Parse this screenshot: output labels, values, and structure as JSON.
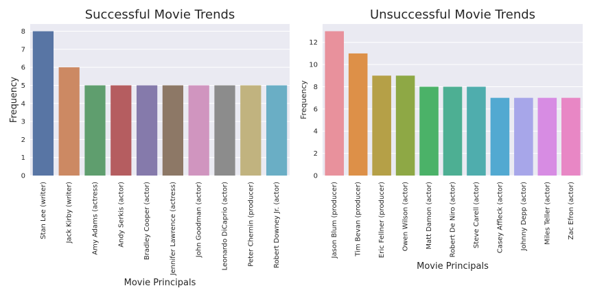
{
  "chart_data": [
    {
      "type": "bar",
      "title": "Successful Movie Trends",
      "xlabel": "Movie Principals",
      "ylabel": "Frequency",
      "ylim": [
        0,
        8.4
      ],
      "yticks": [
        0,
        1,
        2,
        3,
        4,
        5,
        6,
        7,
        8
      ],
      "grid": true,
      "categories": [
        "Stan Lee (writer)",
        "Jack Kirby (writer)",
        "Amy Adams (actress)",
        "Andy Serkis (actor)",
        "Bradley Cooper (actor)",
        "Jennifer Lawrence (actress)",
        "John Goodman (actor)",
        "Leonardo DiCaprio (actor)",
        "Peter Chernin (producer)",
        "Robert Downey Jr. (actor)"
      ],
      "values": [
        8,
        6,
        5,
        5,
        5,
        5,
        5,
        5,
        5,
        5
      ],
      "colors": [
        "#5875a4",
        "#cc8963",
        "#5f9e6e",
        "#b55d60",
        "#857aab",
        "#8d7866",
        "#d095bf",
        "#8c8c8c",
        "#c1b37f",
        "#6aaec5"
      ]
    },
    {
      "type": "bar",
      "title": "Unsuccessful Movie Trends",
      "xlabel": "Movie Principals",
      "ylabel": "Frequency",
      "ylim": [
        0,
        13.65
      ],
      "yticks": [
        0,
        2,
        4,
        6,
        8,
        10,
        12
      ],
      "grid": true,
      "categories": [
        "Jason Blum (producer)",
        "Tim Bevan (producer)",
        "Eric Fellner (producer)",
        "Owen Wilson (actor)",
        "Matt Damon (actor)",
        "Robert De Niro (actor)",
        "Steve Carell (actor)",
        "Casey Affleck (actor)",
        "Johnny Depp (actor)",
        "Miles Teller (actor)",
        "Zac Efron (actor)"
      ],
      "values": [
        13,
        11,
        9,
        9,
        8,
        8,
        8,
        7,
        7,
        7,
        7
      ],
      "colors": [
        "#e8919c",
        "#dd9048",
        "#b5a047",
        "#8ea845",
        "#4bb268",
        "#4daf93",
        "#4fadad",
        "#52a9d1",
        "#a7a6e9",
        "#d78ce3",
        "#e887c5"
      ]
    }
  ]
}
